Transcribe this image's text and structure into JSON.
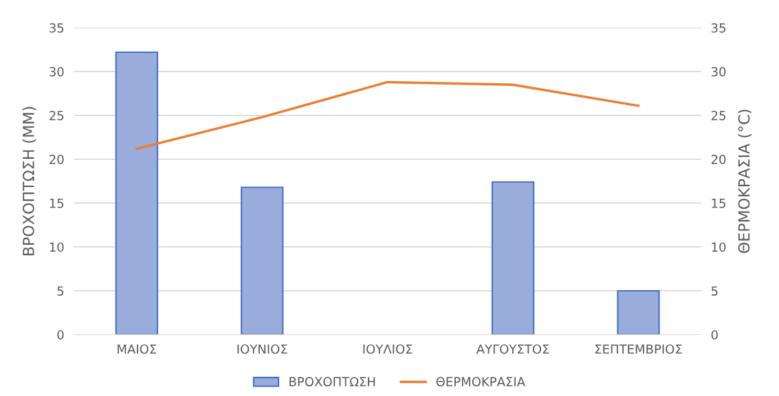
{
  "chart_data": {
    "type": "bar",
    "categories": [
      "ΜΑΙΟΣ",
      "ΙΟΥΝΙΟΣ",
      "ΙΟΥΛΙΟΣ",
      "ΑΥΓΟΥΣΤΟΣ",
      "ΣΕΠΤΕΜΒΡΙΟΣ"
    ],
    "series": [
      {
        "name": "ΒΡΟΧΟΠΤΩΣΗ",
        "color": "#9aacdc",
        "values": [
          32.2,
          16.8,
          0,
          17.4,
          5.0
        ]
      },
      {
        "name": "ΘΕΡΜΟΚΡΑΣΙΑ",
        "type": "line",
        "axis": "y2",
        "color": "#ed7d31",
        "values": [
          21.2,
          24.8,
          28.8,
          28.5,
          26.1
        ]
      }
    ],
    "ylabel": "ΒΡΟΧΟΠΤΩΣΗ (MM)",
    "y2label": "ΘΕΡΜΟΚΡΑΣΙΑ (°C)",
    "ylim": [
      0,
      35
    ],
    "yticks": [
      0,
      5,
      10,
      15,
      20,
      25,
      30,
      35
    ],
    "y2lim": [
      0,
      35
    ],
    "y2ticks": [
      0,
      5,
      10,
      15,
      20,
      25,
      30,
      35
    ],
    "grid": "y",
    "legend": "bottom",
    "marker": "none",
    "line_style": "solid"
  }
}
